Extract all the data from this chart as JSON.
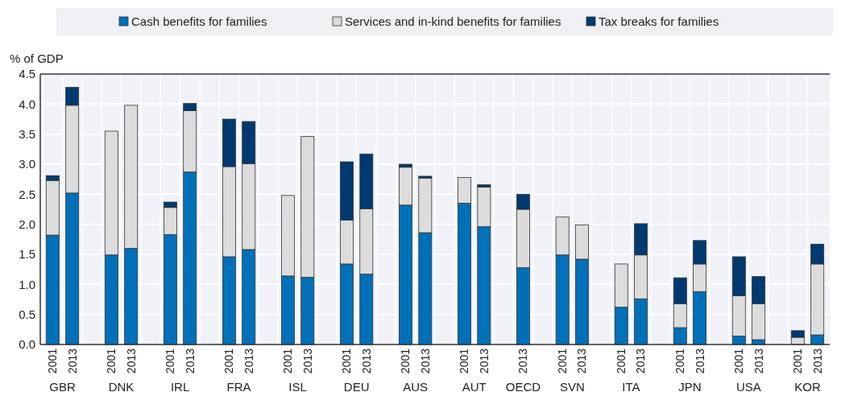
{
  "chart_data": {
    "type": "bar",
    "stacked": true,
    "ylabel": "% of GDP",
    "categories": [
      "2001",
      "2013",
      null,
      "2001",
      "2013",
      null,
      "2001",
      "2013",
      null,
      "2001",
      "2013",
      null,
      "2001",
      "2013",
      null,
      "2001",
      "2013",
      null,
      "2001",
      "2013",
      null,
      "2001",
      "2013",
      null,
      "2013",
      null,
      "2001",
      "2013",
      null,
      "2001",
      "2013",
      null,
      "2001",
      "2013",
      null,
      "2001",
      "2013",
      null,
      "2001",
      "2013"
    ],
    "series": [
      {
        "name": "Cash benefits for families",
        "color": "#0070b8",
        "values": [
          1.82,
          2.52,
          null,
          1.49,
          1.6,
          null,
          1.83,
          2.87,
          null,
          1.46,
          1.58,
          null,
          1.14,
          1.12,
          null,
          1.34,
          1.17,
          null,
          2.32,
          1.86,
          null,
          2.35,
          1.96,
          null,
          1.28,
          null,
          1.49,
          1.42,
          null,
          0.62,
          0.76,
          null,
          0.28,
          0.88,
          null,
          0.14,
          0.08,
          null,
          null,
          0.16
        ]
      },
      {
        "name": "Services and in-kind benefits for families",
        "color": "#dcdcdc",
        "values": [
          0.91,
          1.46,
          null,
          2.06,
          2.38,
          null,
          0.45,
          1.02,
          null,
          1.5,
          1.43,
          null,
          1.34,
          2.34,
          null,
          0.73,
          1.09,
          null,
          0.63,
          0.91,
          null,
          0.43,
          0.66,
          null,
          0.97,
          null,
          0.63,
          0.57,
          null,
          0.72,
          0.73,
          null,
          0.4,
          0.46,
          null,
          0.67,
          0.6,
          null,
          0.12,
          1.18
        ]
      },
      {
        "name": "Tax breaks for families",
        "color": "#003a70",
        "values": [
          0.08,
          0.3,
          null,
          0,
          0,
          null,
          0.09,
          0.12,
          null,
          0.79,
          0.7,
          null,
          0,
          0,
          null,
          0.97,
          0.91,
          null,
          0.05,
          0.03,
          null,
          0,
          0.04,
          null,
          0.25,
          null,
          0,
          0,
          null,
          0,
          0.52,
          null,
          0.43,
          0.39,
          null,
          0.65,
          0.45,
          null,
          0.11,
          0.33
        ]
      }
    ],
    "annotations": [
      "GBR",
      "DNK",
      "IRL",
      "FRA",
      "ISL",
      "DEU",
      "AUS",
      "AUT",
      "OECD",
      "SVN",
      "ITA",
      "JPN",
      "USA",
      "KOR"
    ],
    "ylim": [
      0,
      4.5
    ],
    "yticks": [
      {
        "value": 0,
        "label": "0.0"
      },
      {
        "value": 0.5,
        "label": "0.5"
      },
      {
        "value": 1,
        "label": "1.0"
      },
      {
        "value": 1.5,
        "label": "1.5"
      },
      {
        "value": 2,
        "label": "2.0"
      },
      {
        "value": 2.5,
        "label": "2.5"
      },
      {
        "value": 3,
        "label": "3.0"
      },
      {
        "value": 3.5,
        "label": "3.5"
      },
      {
        "value": 4,
        "label": "4.0"
      },
      {
        "value": 4.5,
        "label": "4.5"
      }
    ],
    "grid": true,
    "legend": "top"
  }
}
